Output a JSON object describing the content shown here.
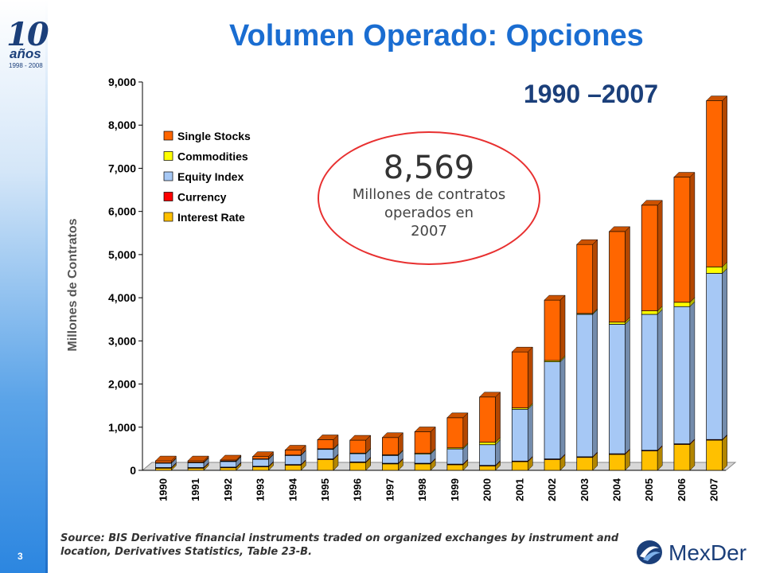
{
  "header": {
    "title": "Volumen Operado: Opciones",
    "year_range": "1990 –2007"
  },
  "anniversary_logo": {
    "number": "10",
    "text": "años",
    "years": "1998 - 2008"
  },
  "page_number": "3",
  "callout": {
    "value": "8,569",
    "line1": "Millones de contratos",
    "line2": "operados en",
    "line3": "2007"
  },
  "source_note": "Source: BIS Derivative financial instruments traded on organized exchanges by instrument and location, Derivatives Statistics, Table 23-B.",
  "brand": {
    "name": "MexDer"
  },
  "colors": {
    "title": "#1a6dd1",
    "callout_border": "#e83030"
  },
  "chart_data": {
    "type": "bar",
    "stacked": true,
    "three_d": true,
    "ylabel": "Millones de Contratos",
    "xlabel": "",
    "ylim": [
      0,
      9000
    ],
    "yticks": [
      0,
      1000,
      2000,
      3000,
      4000,
      5000,
      6000,
      7000,
      8000,
      9000
    ],
    "ytick_labels": [
      "0",
      "1,000",
      "2,000",
      "3,000",
      "4,000",
      "5,000",
      "6,000",
      "7,000",
      "8,000",
      "9,000"
    ],
    "categories": [
      "1990",
      "1991",
      "1992",
      "1993",
      "1994",
      "1995",
      "1996",
      "1997",
      "1998",
      "1999",
      "2000",
      "2001",
      "2002",
      "2003",
      "2004",
      "2005",
      "2006",
      "2007"
    ],
    "legend_position": "upper-left",
    "series": [
      {
        "name": "Interest Rate",
        "color": "#ffc000",
        "values": [
          50,
          50,
          60,
          80,
          120,
          250,
          180,
          150,
          150,
          130,
          100,
          200,
          250,
          300,
          370,
          450,
          600,
          700
        ]
      },
      {
        "name": "Currency",
        "color": "#ff0000",
        "values": [
          15,
          15,
          15,
          15,
          15,
          15,
          15,
          15,
          15,
          15,
          15,
          15,
          15,
          15,
          15,
          15,
          15,
          15
        ]
      },
      {
        "name": "Equity Index",
        "color": "#a6c8f5",
        "values": [
          100,
          110,
          130,
          160,
          210,
          220,
          190,
          180,
          210,
          350,
          480,
          1200,
          2250,
          3300,
          3000,
          3150,
          3180,
          3850
        ]
      },
      {
        "name": "Commodities",
        "color": "#ffff00",
        "values": [
          10,
          10,
          10,
          10,
          10,
          15,
          15,
          15,
          20,
          25,
          55,
          30,
          30,
          20,
          50,
          80,
          100,
          150
        ]
      },
      {
        "name": "Single Stocks",
        "color": "#ff6600",
        "values": [
          45,
          35,
          25,
          55,
          115,
          210,
          300,
          400,
          500,
          700,
          1050,
          1300,
          1400,
          1600,
          2100,
          2450,
          2900,
          3850
        ]
      }
    ]
  }
}
